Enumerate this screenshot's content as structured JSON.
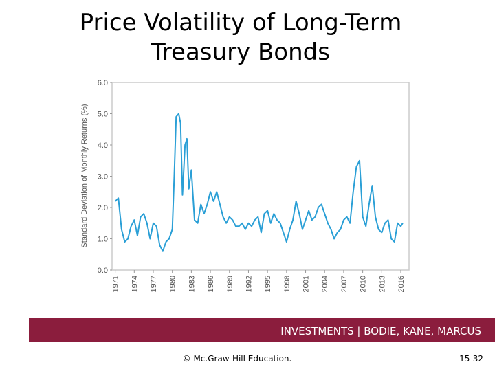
{
  "chart_data": {
    "type": "line",
    "title": "Price Volatility of Long-Term Treasury Bonds",
    "y_label": "Standard Deviation of Monthly Returns (%)",
    "x": [
      1971,
      1971.5,
      1972,
      1972.5,
      1973,
      1973.5,
      1974,
      1974.5,
      1975,
      1975.5,
      1976,
      1976.5,
      1977,
      1977.5,
      1978,
      1978.5,
      1979,
      1979.5,
      1980,
      1980.3,
      1980.6,
      1981,
      1981.3,
      1981.6,
      1982,
      1982.3,
      1982.6,
      1983,
      1983.5,
      1984,
      1984.5,
      1985,
      1985.5,
      1986,
      1986.5,
      1987,
      1987.5,
      1988,
      1988.5,
      1989,
      1989.5,
      1990,
      1990.5,
      1991,
      1991.5,
      1992,
      1992.5,
      1993,
      1993.5,
      1994,
      1994.5,
      1995,
      1995.5,
      1996,
      1996.5,
      1997,
      1997.5,
      1998,
      1998.5,
      1999,
      1999.5,
      2000,
      2000.5,
      2001,
      2001.5,
      2002,
      2002.5,
      2003,
      2003.5,
      2004,
      2004.5,
      2005,
      2005.5,
      2006,
      2006.5,
      2007,
      2007.5,
      2008,
      2008.5,
      2009,
      2009.5,
      2010,
      2010.5,
      2011,
      2011.5,
      2012,
      2012.5,
      2013,
      2013.5,
      2014,
      2014.5,
      2015,
      2015.5,
      2016,
      2016.3
    ],
    "series": [
      {
        "name": "Standard deviation",
        "color": "#2a9fd6",
        "values": [
          2.2,
          2.3,
          1.3,
          0.9,
          1.0,
          1.4,
          1.6,
          1.1,
          1.7,
          1.8,
          1.5,
          1.0,
          1.5,
          1.4,
          0.8,
          0.6,
          0.9,
          1.0,
          1.3,
          3.0,
          4.9,
          5.0,
          4.7,
          2.4,
          4.0,
          4.2,
          2.6,
          3.2,
          1.6,
          1.5,
          2.1,
          1.8,
          2.1,
          2.5,
          2.2,
          2.5,
          2.1,
          1.7,
          1.5,
          1.7,
          1.6,
          1.4,
          1.4,
          1.5,
          1.3,
          1.5,
          1.4,
          1.6,
          1.7,
          1.2,
          1.8,
          1.9,
          1.5,
          1.8,
          1.6,
          1.5,
          1.2,
          0.9,
          1.3,
          1.6,
          2.2,
          1.8,
          1.3,
          1.6,
          1.9,
          1.6,
          1.7,
          2.0,
          2.1,
          1.8,
          1.5,
          1.3,
          1.0,
          1.2,
          1.3,
          1.6,
          1.7,
          1.5,
          2.5,
          3.3,
          3.5,
          1.7,
          1.4,
          2.1,
          2.7,
          1.7,
          1.3,
          1.2,
          1.5,
          1.6,
          1.0,
          0.9,
          1.5,
          1.4,
          1.5
        ]
      }
    ],
    "xlim": [
      1970.5,
      2017.3
    ],
    "xticks": [
      1971,
      1974,
      1977,
      1980,
      1983,
      1986,
      1989,
      1992,
      1995,
      1998,
      2001,
      2004,
      2007,
      2010,
      2013,
      2016
    ],
    "ylim": [
      0,
      6
    ],
    "yticks": [
      {
        "value": 0,
        "label": "0.0"
      },
      {
        "value": 1,
        "label": "1.0"
      },
      {
        "value": 2,
        "label": "2.0"
      },
      {
        "value": 3,
        "label": "3.0"
      },
      {
        "value": 4,
        "label": "4.0"
      },
      {
        "value": 5,
        "label": "5.0"
      },
      {
        "value": 6,
        "label": "6.0"
      }
    ]
  },
  "footer": {
    "banner": "INVESTMENTS | BODIE, KANE, MARCUS",
    "copyright": "© Mc.Graw-Hill Education.",
    "page": "15-32"
  }
}
